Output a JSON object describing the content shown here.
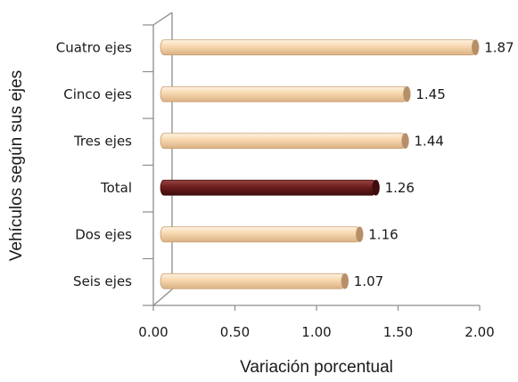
{
  "chart_data": {
    "type": "bar",
    "orientation": "horizontal",
    "categories": [
      "Cuatro ejes",
      "Cinco ejes",
      "Tres ejes",
      "Total",
      "Dos ejes",
      "Seis ejes"
    ],
    "values": [
      1.87,
      1.45,
      1.44,
      1.26,
      1.16,
      1.07
    ],
    "value_labels": [
      "1.87",
      "1.45",
      "1.44",
      "1.26",
      "1.16",
      "1.07"
    ],
    "highlight_category": "Total",
    "xlabel": "Variación porcentual",
    "ylabel": "Vehículos según sus ejes",
    "xlim": [
      0,
      2
    ],
    "x_ticks": [
      0,
      0.5,
      1,
      1.5,
      2
    ],
    "x_tick_labels": [
      "0.00",
      "0.50",
      "1.00",
      "1.50",
      "2.00"
    ],
    "grid": false,
    "legend": "none",
    "colors": {
      "bar_fill": "#f7d6ad",
      "bar_edge": "#c49a6c",
      "bar_cap": "#b58e6a",
      "highlight_fill": "#6e1e1e",
      "highlight_edge": "#3e0c0c",
      "axis": "#8c8c8c"
    }
  }
}
